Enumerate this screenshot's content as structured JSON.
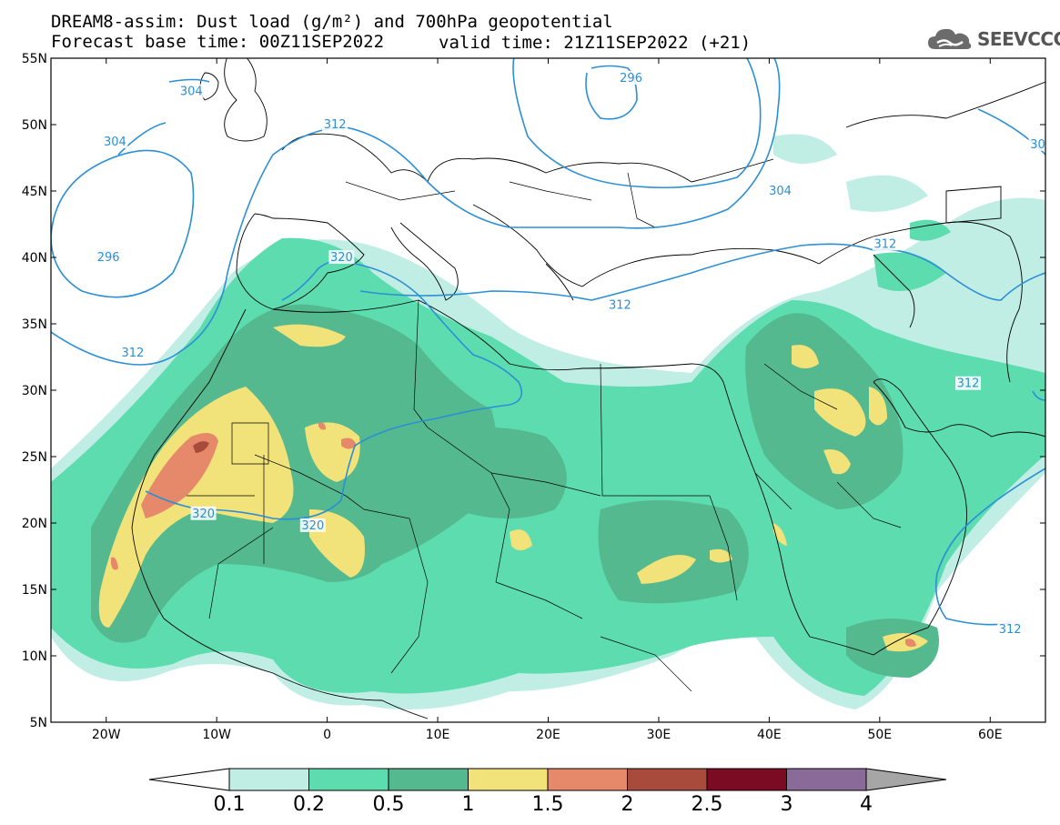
{
  "title": {
    "line1": "DREAM8-assim: Dust load (g/m²) and 700hPa geopotential",
    "line2": "Forecast base time: 00Z11SEP2022",
    "valid": "valid time: 21Z11SEP2022 (+21)"
  },
  "logo": {
    "text": "SEEVCCC",
    "icon": "cloud-icon"
  },
  "map": {
    "lon_range": [
      -25,
      65
    ],
    "lat_range": [
      5,
      55
    ],
    "lon_ticks": [
      -20,
      -10,
      0,
      10,
      20,
      30,
      40,
      50,
      60
    ],
    "lon_labels": [
      "20W",
      "10W",
      "0",
      "10E",
      "20E",
      "30E",
      "40E",
      "50E",
      "60E"
    ],
    "lat_ticks": [
      55,
      50,
      45,
      40,
      35,
      30,
      25,
      20,
      15,
      10,
      5
    ],
    "lat_labels": [
      "55N",
      "50N",
      "45N",
      "40N",
      "35N",
      "30N",
      "25N",
      "20N",
      "15N",
      "10N",
      "5N"
    ],
    "contour_labels": [
      {
        "text": "304",
        "lon": -12.3,
        "lat": 52.5
      },
      {
        "text": "312",
        "lon": 0.7,
        "lat": 50.0
      },
      {
        "text": "296",
        "lon": 27.5,
        "lat": 53.5
      },
      {
        "text": "304",
        "lon": -19.2,
        "lat": 48.7
      },
      {
        "text": "296",
        "lon": -19.8,
        "lat": 40.0
      },
      {
        "text": "312",
        "lon": -17.6,
        "lat": 32.8
      },
      {
        "text": "320",
        "lon": 1.3,
        "lat": 40.0
      },
      {
        "text": "304",
        "lon": 41.0,
        "lat": 45.0
      },
      {
        "text": "312",
        "lon": 50.5,
        "lat": 41.0
      },
      {
        "text": "312",
        "lon": 26.5,
        "lat": 36.4
      },
      {
        "text": "312",
        "lon": 58.0,
        "lat": 30.5
      },
      {
        "text": "320",
        "lon": -11.2,
        "lat": 20.7
      },
      {
        "text": "320",
        "lon": -1.3,
        "lat": 19.8
      },
      {
        "text": "312",
        "lon": 61.8,
        "lat": 12.0
      },
      {
        "text": "30",
        "lon": 64.3,
        "lat": 48.5
      }
    ]
  },
  "colorbar": {
    "labels": [
      "0.1",
      "0.2",
      "0.5",
      "1",
      "1.5",
      "2",
      "2.5",
      "3",
      "4"
    ],
    "colors": [
      "#c0ede4",
      "#5ddcaf",
      "#54b98f",
      "#f2e27a",
      "#e6896a",
      "#a84a3c",
      "#7a0b22",
      "#8a6a99"
    ],
    "under_color": "#ffffff",
    "over_color": "#a6a6a6"
  },
  "colors": {
    "contour": "#2b8fd6",
    "border": "#000000"
  }
}
